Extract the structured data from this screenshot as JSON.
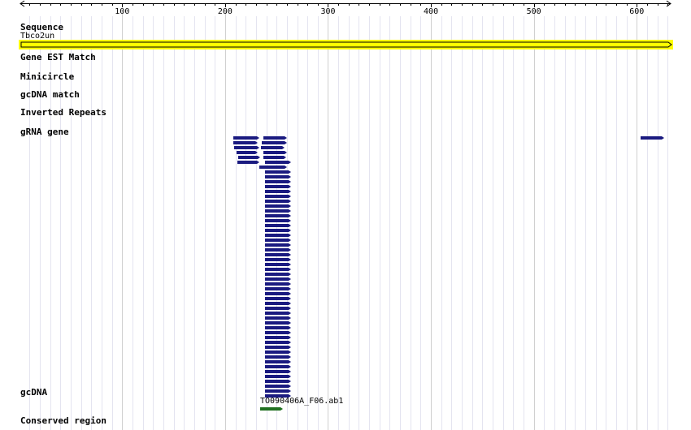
{
  "scale": {
    "start": 1,
    "end": 633,
    "tick_labels": [
      "100",
      "200",
      "300",
      "400",
      "500",
      "600"
    ]
  },
  "tracks": {
    "sequence": {
      "label": "Sequence",
      "name": "Tbco2un"
    },
    "gene_est_match": {
      "label": "Gene EST Match"
    },
    "minicircle": {
      "label": "Minicircle"
    },
    "gcdna_match": {
      "label": "gcDNA match"
    },
    "inverted_repeats": {
      "label": "Inverted Repeats"
    },
    "grna_gene": {
      "label": "gRNA gene"
    },
    "gcdna": {
      "label": "gcDNA",
      "feature_name": "TO090406A_F06.ab1"
    },
    "conserved_region": {
      "label": "Conserved region"
    }
  },
  "chart_data": {
    "type": "genome-browser",
    "x_range": [
      1,
      633
    ],
    "x_ticks": [
      100,
      200,
      300,
      400,
      500,
      600
    ],
    "features": {
      "grna_gene": [
        [
          208,
          233
        ],
        [
          237,
          260
        ],
        [
          604,
          627
        ],
        [
          208,
          232
        ],
        [
          209,
          233
        ],
        [
          211,
          232
        ],
        [
          213,
          234
        ],
        [
          236,
          260
        ],
        [
          212,
          233
        ],
        [
          233,
          260
        ],
        [
          235,
          258
        ],
        [
          237,
          260
        ],
        [
          237,
          259
        ],
        [
          239,
          264
        ],
        [
          239,
          264
        ],
        [
          239,
          264
        ],
        [
          239,
          264
        ],
        [
          239,
          264
        ],
        [
          239,
          264
        ],
        [
          239,
          264
        ],
        [
          239,
          264
        ],
        [
          239,
          264
        ],
        [
          239,
          264
        ],
        [
          239,
          264
        ],
        [
          239,
          264
        ],
        [
          239,
          264
        ],
        [
          239,
          264
        ],
        [
          239,
          264
        ],
        [
          239,
          264
        ],
        [
          239,
          264
        ],
        [
          239,
          264
        ],
        [
          239,
          264
        ],
        [
          239,
          264
        ],
        [
          239,
          264
        ],
        [
          239,
          264
        ],
        [
          239,
          264
        ],
        [
          239,
          264
        ],
        [
          239,
          264
        ],
        [
          239,
          264
        ],
        [
          239,
          264
        ],
        [
          239,
          264
        ],
        [
          239,
          264
        ],
        [
          239,
          264
        ],
        [
          239,
          264
        ],
        [
          239,
          264
        ],
        [
          239,
          264
        ],
        [
          239,
          264
        ],
        [
          239,
          264
        ],
        [
          239,
          264
        ],
        [
          239,
          264
        ],
        [
          239,
          264
        ],
        [
          239,
          264
        ],
        [
          239,
          264
        ],
        [
          239,
          264
        ],
        [
          239,
          264
        ],
        [
          239,
          264
        ],
        [
          239,
          264
        ],
        [
          239,
          264
        ],
        [
          239,
          264
        ],
        [
          239,
          264
        ],
        [
          239,
          264
        ]
      ],
      "gcdna": [
        [
          234,
          256
        ]
      ]
    },
    "colors": {
      "sequence_bar": "#ffff00",
      "grna_gene": "#1a1a80",
      "gcdna": "#207020",
      "grid": "#e4e4f0",
      "major_grid": "#d0d0d0"
    }
  }
}
